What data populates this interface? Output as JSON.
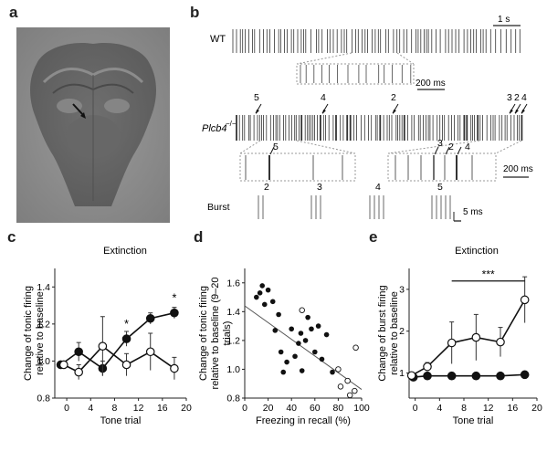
{
  "panels": {
    "a": {
      "letter": "a"
    },
    "b": {
      "letter": "b",
      "wt_label": "WT",
      "mut_label": "Plcb4",
      "mut_sup": "−/−",
      "burst_label": "Burst",
      "scale_1s": "1 s",
      "scale_200ms_a": "200 ms",
      "scale_200ms_b": "200 ms",
      "scale_5ms": "5 ms",
      "arrow_labels": [
        "5",
        "4",
        "2",
        "3",
        "2",
        "4"
      ],
      "inset_arrow_labels": [
        "5",
        "3",
        "2",
        "4"
      ],
      "burst_numbers": [
        "2",
        "3",
        "4",
        "5"
      ]
    },
    "c": {
      "letter": "c"
    },
    "d": {
      "letter": "d"
    },
    "e": {
      "letter": "e"
    }
  },
  "chart_data": [
    {
      "id": "c",
      "type": "line",
      "title": "Extinction",
      "xlabel": "Tone trial",
      "ylabel": "Change of tonic firing relative to baseline",
      "xlim": [
        -2,
        20
      ],
      "ylim": [
        0.8,
        1.5
      ],
      "xticks": [
        0,
        4,
        8,
        12,
        16,
        20
      ],
      "yticks": [
        0.8,
        1.0,
        1.2,
        1.4
      ],
      "series": [
        {
          "marker": "filled",
          "x": [
            -1,
            2,
            6,
            10,
            14,
            18
          ],
          "y": [
            0.98,
            1.05,
            0.96,
            1.12,
            1.23,
            1.26
          ],
          "err": [
            0,
            0.05,
            0.04,
            0.04,
            0.03,
            0.03
          ]
        },
        {
          "marker": "open",
          "x": [
            -0.5,
            2,
            6,
            10,
            14,
            18
          ],
          "y": [
            0.98,
            0.94,
            1.08,
            0.98,
            1.05,
            0.96
          ],
          "err": [
            0,
            0.04,
            0.16,
            0.06,
            0.1,
            0.06
          ]
        }
      ],
      "annotations": [
        {
          "x": 10,
          "y": 1.18,
          "text": "*"
        },
        {
          "x": 18,
          "y": 1.32,
          "text": "*"
        }
      ]
    },
    {
      "id": "d",
      "type": "scatter",
      "xlabel": "Freezing in recall (%)",
      "ylabel": "Change of tonic firing relative to baseline (9–20 trials)",
      "xlim": [
        0,
        100
      ],
      "ylim": [
        0.8,
        1.7
      ],
      "xticks": [
        0,
        20,
        40,
        60,
        80,
        100
      ],
      "yticks": [
        0.8,
        1.0,
        1.2,
        1.4,
        1.6
      ],
      "filled_points": [
        [
          10,
          1.5
        ],
        [
          13,
          1.53
        ],
        [
          15,
          1.58
        ],
        [
          17,
          1.45
        ],
        [
          20,
          1.55
        ],
        [
          24,
          1.47
        ],
        [
          26,
          1.27
        ],
        [
          29,
          1.38
        ],
        [
          31,
          1.12
        ],
        [
          33,
          0.98
        ],
        [
          36,
          1.05
        ],
        [
          40,
          1.28
        ],
        [
          43,
          1.09
        ],
        [
          46,
          1.18
        ],
        [
          49,
          0.99
        ],
        [
          52,
          1.2
        ],
        [
          54,
          1.36
        ],
        [
          57,
          1.28
        ],
        [
          60,
          1.12
        ],
        [
          63,
          1.3
        ],
        [
          66,
          1.07
        ],
        [
          70,
          1.24
        ],
        [
          75,
          0.98
        ],
        [
          48,
          1.25
        ]
      ],
      "open_points": [
        [
          49,
          1.41
        ],
        [
          80,
          1.0
        ],
        [
          88,
          0.92
        ],
        [
          90,
          0.82
        ],
        [
          94,
          0.85
        ],
        [
          95,
          1.15
        ],
        [
          82,
          0.88
        ]
      ],
      "fit_line": {
        "x": [
          0,
          100
        ],
        "y": [
          1.44,
          0.86
        ]
      }
    },
    {
      "id": "e",
      "type": "line",
      "title": "Extinction",
      "xlabel": "Tone trial",
      "ylabel": "Change of burst firing relative to baseline",
      "xlim": [
        -1,
        20
      ],
      "ylim": [
        0.4,
        3.5
      ],
      "xticks": [
        0,
        4,
        8,
        12,
        16,
        20
      ],
      "yticks": [
        1,
        2,
        3
      ],
      "series": [
        {
          "marker": "filled",
          "x": [
            -0.3,
            2,
            6,
            10,
            14,
            18
          ],
          "y": [
            0.9,
            0.93,
            0.93,
            0.93,
            0.93,
            0.96
          ],
          "err": [
            0,
            0.05,
            0.05,
            0.05,
            0.05,
            0.05
          ]
        },
        {
          "marker": "open",
          "x": [
            -0.6,
            2,
            6,
            10,
            14,
            18
          ],
          "y": [
            0.94,
            1.15,
            1.72,
            1.85,
            1.74,
            2.75
          ],
          "err": [
            0,
            0.1,
            0.5,
            0.55,
            0.35,
            0.55
          ]
        }
      ],
      "significance": {
        "x1": 6,
        "x2": 18,
        "y": 3.2,
        "text": "***"
      }
    }
  ]
}
